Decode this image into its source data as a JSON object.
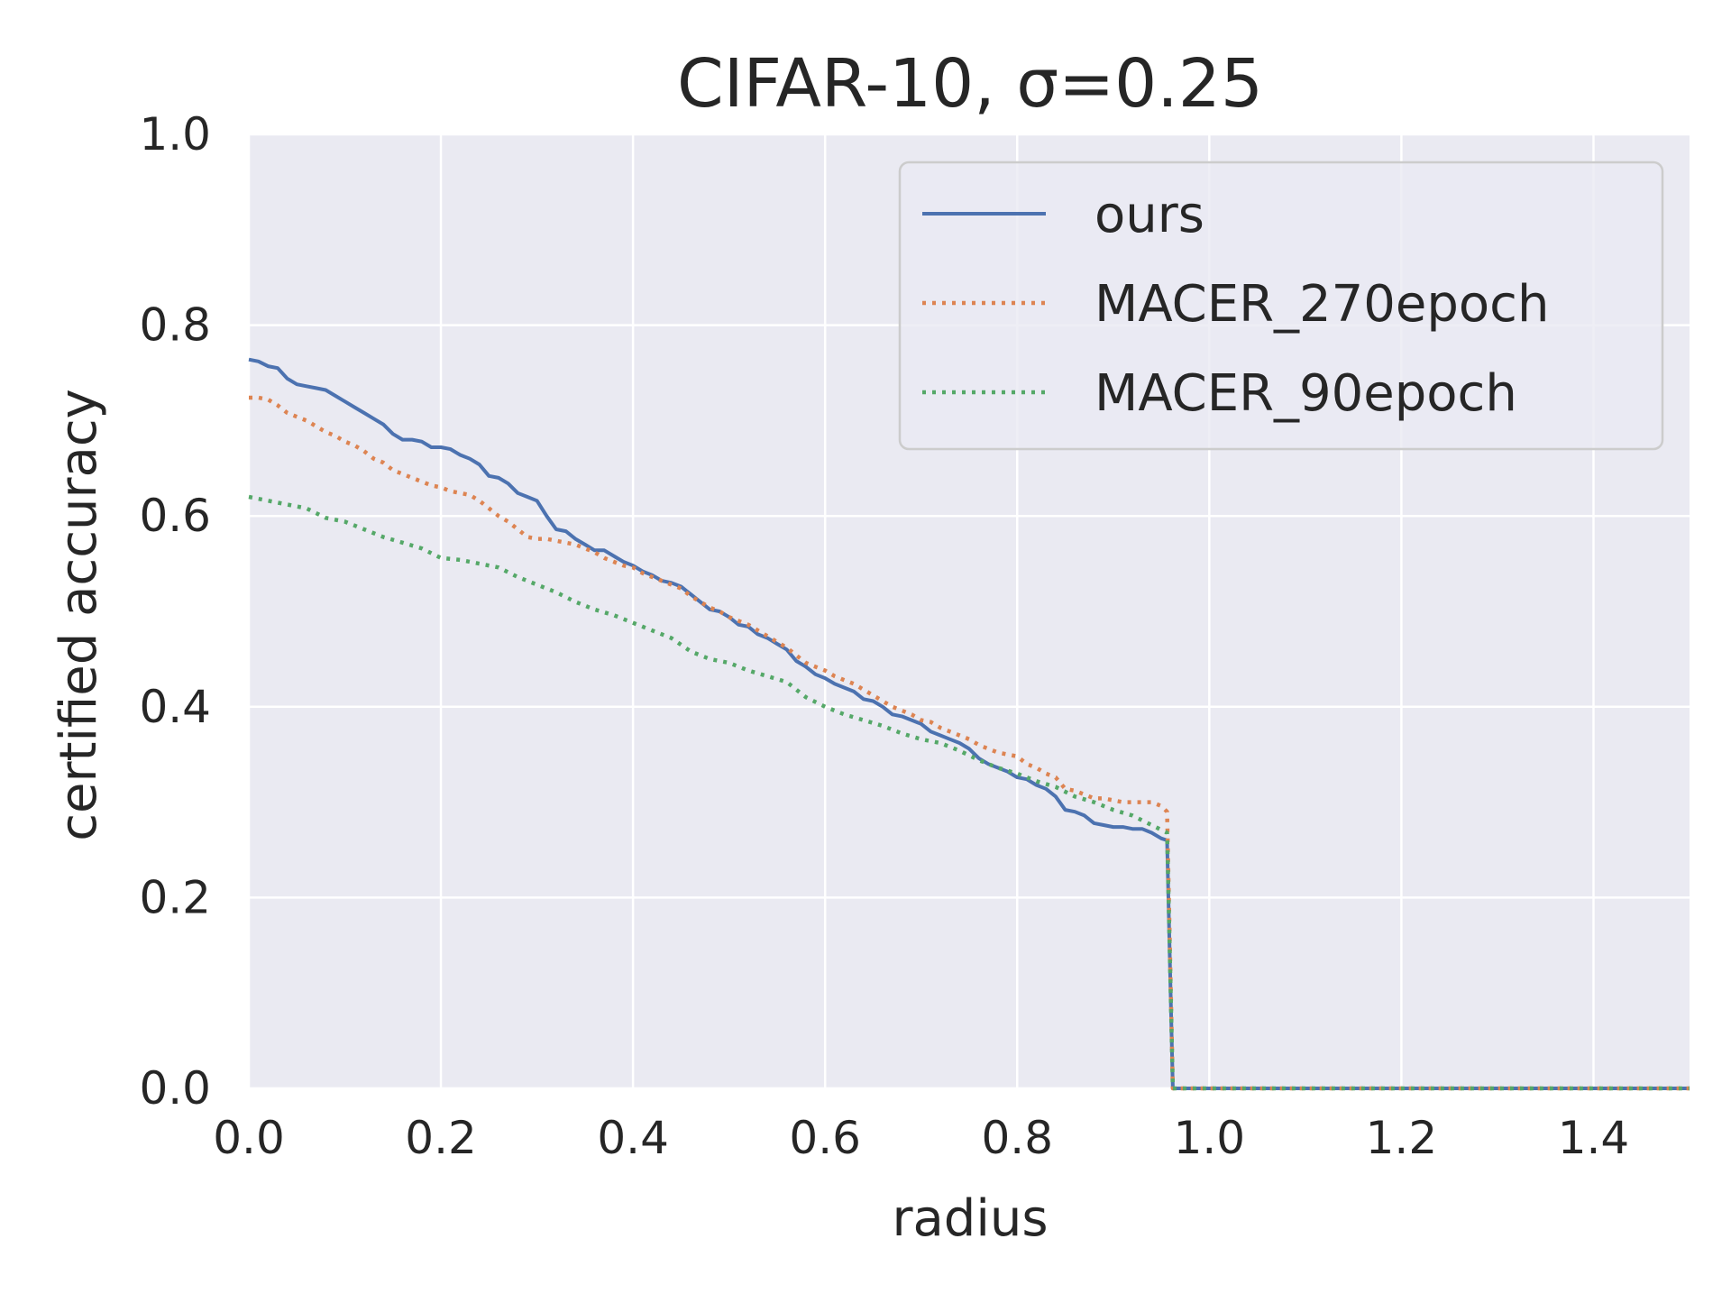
{
  "chart_data": {
    "type": "line",
    "title": "CIFAR-10, σ=0.25",
    "xlabel": "radius",
    "ylabel": "certified accuracy",
    "xlim": [
      0.0,
      1.5
    ],
    "ylim": [
      0.0,
      1.0
    ],
    "xticks": [
      "0.0",
      "0.2",
      "0.4",
      "0.6",
      "0.8",
      "1.0",
      "1.2",
      "1.4"
    ],
    "yticks": [
      "0.0",
      "0.2",
      "0.4",
      "0.6",
      "0.8",
      "1.0"
    ],
    "grid": true,
    "legend_position": "top-right",
    "background": "#eaeaf2",
    "series": [
      {
        "name": "ours",
        "color": "#4c72b0",
        "style": "solid",
        "points": [
          [
            0.0,
            0.764
          ],
          [
            0.01,
            0.762
          ],
          [
            0.02,
            0.757
          ],
          [
            0.03,
            0.755
          ],
          [
            0.04,
            0.744
          ],
          [
            0.05,
            0.738
          ],
          [
            0.06,
            0.736
          ],
          [
            0.07,
            0.734
          ],
          [
            0.08,
            0.732
          ],
          [
            0.09,
            0.726
          ],
          [
            0.1,
            0.72
          ],
          [
            0.11,
            0.714
          ],
          [
            0.12,
            0.708
          ],
          [
            0.13,
            0.702
          ],
          [
            0.14,
            0.696
          ],
          [
            0.15,
            0.686
          ],
          [
            0.16,
            0.68
          ],
          [
            0.17,
            0.68
          ],
          [
            0.18,
            0.678
          ],
          [
            0.19,
            0.672
          ],
          [
            0.2,
            0.672
          ],
          [
            0.21,
            0.67
          ],
          [
            0.22,
            0.664
          ],
          [
            0.23,
            0.66
          ],
          [
            0.24,
            0.654
          ],
          [
            0.25,
            0.642
          ],
          [
            0.26,
            0.64
          ],
          [
            0.27,
            0.634
          ],
          [
            0.28,
            0.624
          ],
          [
            0.29,
            0.62
          ],
          [
            0.3,
            0.616
          ],
          [
            0.31,
            0.6
          ],
          [
            0.32,
            0.586
          ],
          [
            0.33,
            0.584
          ],
          [
            0.34,
            0.576
          ],
          [
            0.35,
            0.57
          ],
          [
            0.36,
            0.564
          ],
          [
            0.37,
            0.564
          ],
          [
            0.38,
            0.558
          ],
          [
            0.39,
            0.552
          ],
          [
            0.4,
            0.548
          ],
          [
            0.41,
            0.542
          ],
          [
            0.42,
            0.538
          ],
          [
            0.43,
            0.532
          ],
          [
            0.44,
            0.53
          ],
          [
            0.45,
            0.526
          ],
          [
            0.46,
            0.518
          ],
          [
            0.47,
            0.51
          ],
          [
            0.48,
            0.502
          ],
          [
            0.49,
            0.5
          ],
          [
            0.5,
            0.494
          ],
          [
            0.51,
            0.486
          ],
          [
            0.52,
            0.484
          ],
          [
            0.53,
            0.476
          ],
          [
            0.54,
            0.472
          ],
          [
            0.55,
            0.466
          ],
          [
            0.56,
            0.46
          ],
          [
            0.57,
            0.448
          ],
          [
            0.58,
            0.442
          ],
          [
            0.59,
            0.434
          ],
          [
            0.6,
            0.43
          ],
          [
            0.61,
            0.424
          ],
          [
            0.62,
            0.42
          ],
          [
            0.63,
            0.416
          ],
          [
            0.64,
            0.408
          ],
          [
            0.65,
            0.406
          ],
          [
            0.66,
            0.4
          ],
          [
            0.67,
            0.392
          ],
          [
            0.68,
            0.39
          ],
          [
            0.69,
            0.386
          ],
          [
            0.7,
            0.382
          ],
          [
            0.71,
            0.374
          ],
          [
            0.72,
            0.37
          ],
          [
            0.73,
            0.366
          ],
          [
            0.74,
            0.362
          ],
          [
            0.75,
            0.356
          ],
          [
            0.76,
            0.346
          ],
          [
            0.77,
            0.34
          ],
          [
            0.78,
            0.336
          ],
          [
            0.79,
            0.332
          ],
          [
            0.8,
            0.326
          ],
          [
            0.81,
            0.324
          ],
          [
            0.82,
            0.318
          ],
          [
            0.83,
            0.314
          ],
          [
            0.84,
            0.306
          ],
          [
            0.85,
            0.292
          ],
          [
            0.86,
            0.29
          ],
          [
            0.87,
            0.286
          ],
          [
            0.88,
            0.278
          ],
          [
            0.89,
            0.276
          ],
          [
            0.9,
            0.274
          ],
          [
            0.91,
            0.274
          ],
          [
            0.92,
            0.272
          ],
          [
            0.93,
            0.272
          ],
          [
            0.94,
            0.268
          ],
          [
            0.95,
            0.262
          ],
          [
            0.956,
            0.26
          ],
          [
            0.962,
            0.0
          ],
          [
            1.5,
            0.0
          ]
        ]
      },
      {
        "name": "MACER_270epoch",
        "color": "#dd8452",
        "style": "dotted",
        "points": [
          [
            0.0,
            0.724
          ],
          [
            0.01,
            0.724
          ],
          [
            0.02,
            0.722
          ],
          [
            0.03,
            0.716
          ],
          [
            0.04,
            0.708
          ],
          [
            0.05,
            0.704
          ],
          [
            0.06,
            0.7
          ],
          [
            0.07,
            0.694
          ],
          [
            0.08,
            0.688
          ],
          [
            0.09,
            0.684
          ],
          [
            0.1,
            0.678
          ],
          [
            0.11,
            0.674
          ],
          [
            0.12,
            0.668
          ],
          [
            0.13,
            0.66
          ],
          [
            0.14,
            0.656
          ],
          [
            0.15,
            0.648
          ],
          [
            0.16,
            0.644
          ],
          [
            0.17,
            0.64
          ],
          [
            0.18,
            0.636
          ],
          [
            0.19,
            0.632
          ],
          [
            0.2,
            0.63
          ],
          [
            0.21,
            0.626
          ],
          [
            0.22,
            0.624
          ],
          [
            0.23,
            0.622
          ],
          [
            0.24,
            0.616
          ],
          [
            0.25,
            0.608
          ],
          [
            0.26,
            0.6
          ],
          [
            0.27,
            0.594
          ],
          [
            0.28,
            0.586
          ],
          [
            0.29,
            0.578
          ],
          [
            0.3,
            0.576
          ],
          [
            0.31,
            0.576
          ],
          [
            0.32,
            0.574
          ],
          [
            0.33,
            0.572
          ],
          [
            0.34,
            0.57
          ],
          [
            0.35,
            0.566
          ],
          [
            0.36,
            0.562
          ],
          [
            0.37,
            0.556
          ],
          [
            0.38,
            0.552
          ],
          [
            0.39,
            0.548
          ],
          [
            0.4,
            0.546
          ],
          [
            0.41,
            0.54
          ],
          [
            0.42,
            0.536
          ],
          [
            0.43,
            0.532
          ],
          [
            0.44,
            0.528
          ],
          [
            0.45,
            0.524
          ],
          [
            0.46,
            0.516
          ],
          [
            0.47,
            0.51
          ],
          [
            0.48,
            0.504
          ],
          [
            0.49,
            0.5
          ],
          [
            0.5,
            0.494
          ],
          [
            0.51,
            0.49
          ],
          [
            0.52,
            0.486
          ],
          [
            0.53,
            0.48
          ],
          [
            0.54,
            0.474
          ],
          [
            0.55,
            0.468
          ],
          [
            0.56,
            0.462
          ],
          [
            0.57,
            0.454
          ],
          [
            0.58,
            0.446
          ],
          [
            0.59,
            0.442
          ],
          [
            0.6,
            0.438
          ],
          [
            0.61,
            0.432
          ],
          [
            0.62,
            0.428
          ],
          [
            0.63,
            0.424
          ],
          [
            0.64,
            0.418
          ],
          [
            0.65,
            0.412
          ],
          [
            0.66,
            0.406
          ],
          [
            0.67,
            0.4
          ],
          [
            0.68,
            0.396
          ],
          [
            0.69,
            0.392
          ],
          [
            0.7,
            0.386
          ],
          [
            0.71,
            0.384
          ],
          [
            0.72,
            0.378
          ],
          [
            0.73,
            0.374
          ],
          [
            0.74,
            0.37
          ],
          [
            0.75,
            0.366
          ],
          [
            0.76,
            0.36
          ],
          [
            0.77,
            0.356
          ],
          [
            0.78,
            0.352
          ],
          [
            0.79,
            0.35
          ],
          [
            0.8,
            0.348
          ],
          [
            0.81,
            0.34
          ],
          [
            0.82,
            0.336
          ],
          [
            0.83,
            0.33
          ],
          [
            0.84,
            0.326
          ],
          [
            0.85,
            0.314
          ],
          [
            0.86,
            0.312
          ],
          [
            0.87,
            0.308
          ],
          [
            0.88,
            0.304
          ],
          [
            0.89,
            0.304
          ],
          [
            0.9,
            0.302
          ],
          [
            0.91,
            0.3
          ],
          [
            0.92,
            0.3
          ],
          [
            0.93,
            0.3
          ],
          [
            0.94,
            0.3
          ],
          [
            0.95,
            0.296
          ],
          [
            0.956,
            0.29
          ],
          [
            0.962,
            0.0
          ],
          [
            1.5,
            0.0
          ]
        ]
      },
      {
        "name": "MACER_90epoch",
        "color": "#55a868",
        "style": "dotted",
        "points": [
          [
            0.0,
            0.62
          ],
          [
            0.02,
            0.616
          ],
          [
            0.04,
            0.612
          ],
          [
            0.06,
            0.608
          ],
          [
            0.08,
            0.598
          ],
          [
            0.1,
            0.594
          ],
          [
            0.12,
            0.586
          ],
          [
            0.14,
            0.578
          ],
          [
            0.16,
            0.572
          ],
          [
            0.18,
            0.566
          ],
          [
            0.2,
            0.556
          ],
          [
            0.22,
            0.554
          ],
          [
            0.24,
            0.55
          ],
          [
            0.26,
            0.546
          ],
          [
            0.28,
            0.536
          ],
          [
            0.3,
            0.528
          ],
          [
            0.32,
            0.52
          ],
          [
            0.34,
            0.51
          ],
          [
            0.36,
            0.502
          ],
          [
            0.38,
            0.496
          ],
          [
            0.4,
            0.488
          ],
          [
            0.42,
            0.48
          ],
          [
            0.44,
            0.472
          ],
          [
            0.46,
            0.458
          ],
          [
            0.48,
            0.45
          ],
          [
            0.5,
            0.446
          ],
          [
            0.52,
            0.438
          ],
          [
            0.54,
            0.432
          ],
          [
            0.56,
            0.426
          ],
          [
            0.58,
            0.41
          ],
          [
            0.6,
            0.4
          ],
          [
            0.62,
            0.392
          ],
          [
            0.64,
            0.386
          ],
          [
            0.66,
            0.38
          ],
          [
            0.68,
            0.372
          ],
          [
            0.7,
            0.366
          ],
          [
            0.72,
            0.362
          ],
          [
            0.74,
            0.354
          ],
          [
            0.76,
            0.344
          ],
          [
            0.78,
            0.336
          ],
          [
            0.8,
            0.33
          ],
          [
            0.82,
            0.322
          ],
          [
            0.84,
            0.316
          ],
          [
            0.86,
            0.306
          ],
          [
            0.88,
            0.3
          ],
          [
            0.9,
            0.292
          ],
          [
            0.92,
            0.286
          ],
          [
            0.94,
            0.276
          ],
          [
            0.956,
            0.268
          ],
          [
            0.962,
            0.0
          ],
          [
            1.5,
            0.0
          ]
        ]
      }
    ]
  }
}
